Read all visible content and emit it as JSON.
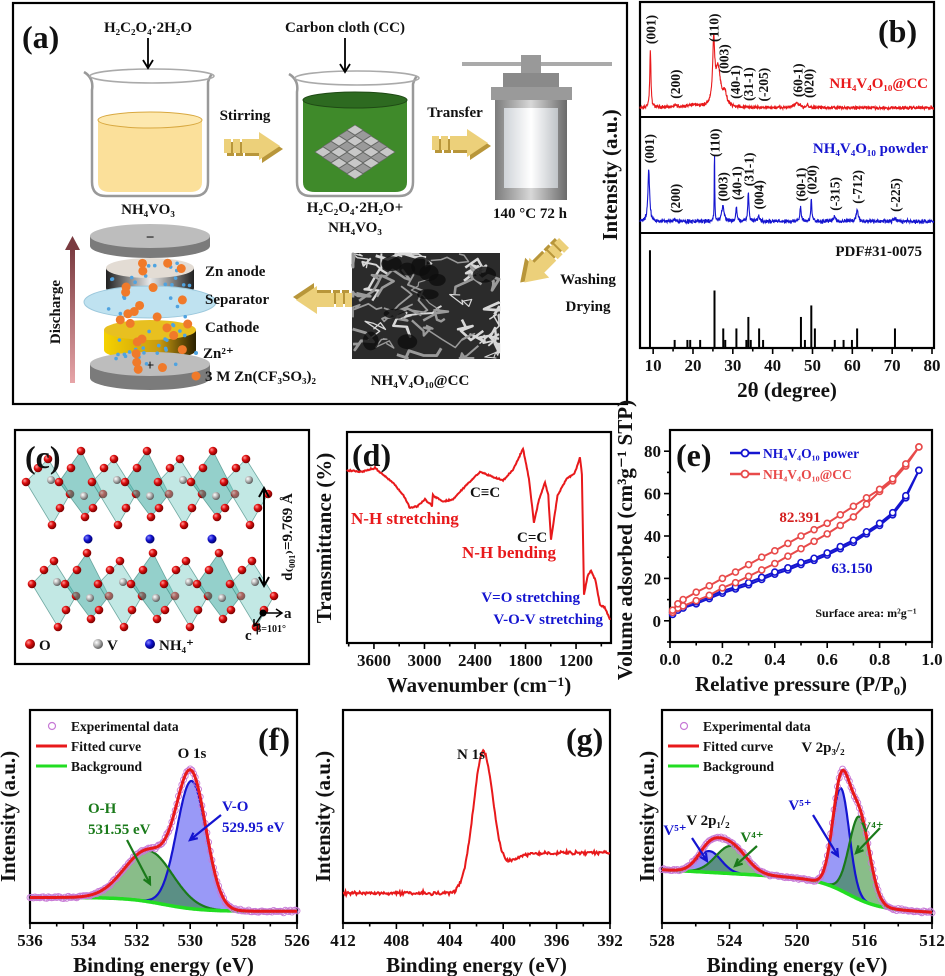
{
  "colors": {
    "red": "#e8191b",
    "blue": "#1515d0",
    "green_bg": "#22dd22",
    "dark_green": "#1a7a1a",
    "marker_pink": "#c77ad6",
    "arrow_gold": "#e6c45c"
  },
  "figure_panels": {
    "a": {
      "label": "(a)",
      "reagent_top_1": "H₂C₂O₄·2H₂O",
      "reagent_top_2": "Carbon cloth (CC)",
      "beaker1_label": "NH₄VO₃",
      "beaker2_label_line1": "H₂C₂O₄·2H₂O+",
      "beaker2_label_line2": "NH₄VO₃",
      "step1": "Stirring",
      "step2": "Transfer",
      "autoclave_label": "140 °C  72 h",
      "step3_line1": "Washing",
      "step3_line2": "Drying",
      "product_label": "NH₄V₄O₁₀@CC",
      "battery": {
        "discharge": "Discharge",
        "anode": "Zn anode",
        "separator": "Separator",
        "cathode": "Cathode",
        "ion_legend": "Zn²⁺",
        "electrolyte_legend": "3 M Zn(CF₃SO₃)₂",
        "minus": "−",
        "plus": "+"
      }
    },
    "c": {
      "label": "(c)",
      "d_spacing": "d₍₀₀₁₎=9.769 Å",
      "axis_a": "a",
      "axis_c": "c",
      "beta": "β=101°",
      "legend": [
        "O",
        "V",
        "NH₄⁺"
      ]
    }
  },
  "chart_data": [
    {
      "panel": "(b)",
      "type": "line",
      "title": "",
      "xlabel": "2θ (degree)",
      "ylabel": "Intensity (a.u.)",
      "xlim": [
        6.7,
        80.5
      ],
      "xticks": [
        "10",
        "20",
        "30",
        "40",
        "50",
        "60",
        "70",
        "80"
      ],
      "series": [
        {
          "name": "NH₄V₄O₁₀@CC",
          "color": "#e8191b",
          "baseline": 0.08,
          "noise": 0.022,
          "peaks": [
            [
              9.3,
              0.5,
              0.35
            ],
            [
              25.2,
              0.52,
              0.6
            ],
            [
              26.3,
              0.33,
              1.6
            ],
            [
              28.0,
              0.1,
              1.0
            ],
            [
              15.5,
              0.02,
              1.0
            ],
            [
              46.0,
              0.04,
              1.5
            ],
            [
              48.7,
              0.03,
              0.5
            ],
            [
              20.0,
              0.02,
              4.0
            ]
          ],
          "labels": [
            {
              "text": "(001)",
              "x": 9.3
            },
            {
              "text": "(200)",
              "x": 15.5
            },
            {
              "text": "(110)",
              "x": 25.2
            },
            {
              "text": "(003)",
              "x": 27.6
            },
            {
              "text": "(40-1)",
              "x": 30.6
            },
            {
              "text": "(31-1)",
              "x": 33.8
            },
            {
              "text": "(-205)",
              "x": 37.6
            },
            {
              "text": "(60-1)",
              "x": 46.3
            },
            {
              "text": "(020)",
              "x": 49.0
            }
          ]
        },
        {
          "name": "NH₄V₄O₁₀ powder",
          "color": "#1515d0",
          "baseline": 0.1,
          "noise": 0.025,
          "peaks": [
            [
              8.9,
              0.45,
              0.5
            ],
            [
              25.4,
              0.6,
              0.15
            ],
            [
              27.5,
              0.12,
              0.8
            ],
            [
              30.9,
              0.13,
              0.35
            ],
            [
              33.9,
              0.25,
              0.35
            ],
            [
              36.5,
              0.05,
              0.5
            ],
            [
              47.0,
              0.12,
              0.4
            ],
            [
              49.7,
              0.18,
              0.35
            ],
            [
              55.5,
              0.04,
              0.8
            ],
            [
              61.2,
              0.1,
              0.6
            ],
            [
              70.7,
              0.03,
              0.6
            ],
            [
              15.5,
              0.02,
              0.5
            ]
          ],
          "labels": [
            {
              "text": "(001)",
              "x": 8.9
            },
            {
              "text": "(200)",
              "x": 15.5
            },
            {
              "text": "(110)",
              "x": 25.4
            },
            {
              "text": "(003)",
              "x": 27.4
            },
            {
              "text": "(40-1)",
              "x": 30.9
            },
            {
              "text": "(31-1)",
              "x": 33.9
            },
            {
              "text": "(004)",
              "x": 36.4
            },
            {
              "text": "(60-1)",
              "x": 47.0
            },
            {
              "text": "(020)",
              "x": 49.7
            },
            {
              "text": "(-315)",
              "x": 55.5
            },
            {
              "text": "(-712)",
              "x": 61.2
            },
            {
              "text": "(-225)",
              "x": 70.7
            }
          ]
        }
      ],
      "reference": {
        "name": "PDF#31-0075",
        "sticks": [
          [
            9.2,
            0.85
          ],
          [
            15.4,
            0.07
          ],
          [
            18.6,
            0.07
          ],
          [
            19.3,
            0.07
          ],
          [
            21.8,
            0.07
          ],
          [
            25.4,
            0.5
          ],
          [
            27.6,
            0.17
          ],
          [
            28.1,
            0.07
          ],
          [
            30.9,
            0.17
          ],
          [
            33.4,
            0.07
          ],
          [
            33.9,
            0.27
          ],
          [
            34.5,
            0.07
          ],
          [
            36.6,
            0.17
          ],
          [
            37.6,
            0.07
          ],
          [
            47.1,
            0.27
          ],
          [
            48.1,
            0.07
          ],
          [
            49.7,
            0.37
          ],
          [
            50.6,
            0.17
          ],
          [
            55.6,
            0.07
          ],
          [
            57.8,
            0.07
          ],
          [
            59.9,
            0.07
          ],
          [
            61.2,
            0.17
          ],
          [
            70.7,
            0.17
          ]
        ]
      }
    },
    {
      "panel": "(d)",
      "type": "line",
      "xlabel": "Wavenumber (cm⁻¹)",
      "ylabel": "Transmittance (%)",
      "xlim": [
        3920,
        785
      ],
      "ylim": [
        0,
        100
      ],
      "xticks": [
        "3600",
        "3000",
        "2400",
        "1800",
        "1200"
      ],
      "color": "#e8191b",
      "points": [
        [
          3921,
          82
        ],
        [
          3750,
          81
        ],
        [
          3588,
          83
        ],
        [
          3374,
          76
        ],
        [
          3250,
          70
        ],
        [
          3172,
          64
        ],
        [
          3080,
          65
        ],
        [
          2994,
          68
        ],
        [
          2911,
          65
        ],
        [
          2900,
          70
        ],
        [
          2780,
          67
        ],
        [
          2662,
          68
        ],
        [
          2500,
          75
        ],
        [
          2341,
          81
        ],
        [
          2200,
          79
        ],
        [
          2068,
          77
        ],
        [
          1950,
          82
        ],
        [
          1830,
          92
        ],
        [
          1760,
          78
        ],
        [
          1700,
          57
        ],
        [
          1640,
          68
        ],
        [
          1569,
          76
        ],
        [
          1530,
          70
        ],
        [
          1498,
          49
        ],
        [
          1420,
          70
        ],
        [
          1308,
          78
        ],
        [
          1220,
          80
        ],
        [
          1154,
          88
        ],
        [
          1130,
          80
        ],
        [
          1106,
          23
        ],
        [
          1060,
          32
        ],
        [
          1023,
          34
        ],
        [
          970,
          30
        ],
        [
          916,
          18
        ],
        [
          860,
          17
        ],
        [
          797,
          11
        ]
      ],
      "annotations": [
        {
          "text": "N-H stretching",
          "color": "#e8191b"
        },
        {
          "text": "C≡C",
          "color": "#111111"
        },
        {
          "text": "C=C",
          "color": "#111111"
        },
        {
          "text": "N-H bending",
          "color": "#e8191b"
        },
        {
          "text": "V=O stretching",
          "color": "#1515d0"
        },
        {
          "text": "V-O-V stretching",
          "color": "#1515d0"
        }
      ]
    },
    {
      "panel": "(e)",
      "type": "line",
      "xlabel": "Relative pressure (P/P₀)",
      "ylabel": "Volume adsorbed (cm³g⁻¹ STP)",
      "xlim": [
        0,
        1
      ],
      "ylim": [
        -10,
        90
      ],
      "xticks": [
        "0.0",
        "0.2",
        "0.4",
        "0.6",
        "0.8",
        "1.0"
      ],
      "yticks": [
        "0",
        "20",
        "40",
        "60",
        "80"
      ],
      "x": [
        0.01,
        0.03,
        0.05,
        0.1,
        0.15,
        0.2,
        0.25,
        0.3,
        0.35,
        0.4,
        0.45,
        0.5,
        0.55,
        0.6,
        0.65,
        0.7,
        0.75,
        0.8,
        0.85,
        0.9,
        0.95
      ],
      "series": [
        {
          "name": "NH₄V₄O₁₀ power",
          "color": "#1515d0",
          "adsorption": [
            3,
            5,
            6,
            8,
            10.5,
            13,
            15,
            17,
            19.5,
            22,
            24,
            26.5,
            28.5,
            31,
            34,
            37,
            41,
            45,
            50,
            58,
            71
          ],
          "desorption": [
            4,
            6,
            7,
            9,
            11.5,
            14,
            16,
            18,
            20.5,
            23,
            25,
            27.5,
            29.5,
            32,
            35,
            38,
            42,
            46,
            51,
            59,
            71
          ],
          "surface_area": "63.150"
        },
        {
          "name": "NH₄V₄O₁₀@CC",
          "color": "#e84a4a",
          "adsorption": [
            4,
            6,
            7,
            9.5,
            12,
            15.5,
            18,
            21,
            24,
            27,
            30.5,
            34,
            37.5,
            41,
            45,
            49,
            55,
            61,
            66,
            73,
            82
          ],
          "desorption": [
            5,
            8,
            10,
            13.5,
            16.5,
            20,
            23,
            26.5,
            30,
            33,
            36.5,
            40,
            43,
            46,
            50,
            54,
            58,
            62,
            67,
            74,
            82
          ],
          "surface_area": "82.391"
        }
      ],
      "note": "Surface area: m²g⁻¹",
      "legend_position": "top-right"
    },
    {
      "panel": "(f)",
      "type": "line",
      "xlabel": "Binding energy (eV)",
      "ylabel": "Intensity (a.u.)",
      "xlim": [
        536,
        526
      ],
      "ylim": [
        0,
        1
      ],
      "xticks": [
        "536",
        "534",
        "532",
        "530",
        "528",
        "526"
      ],
      "legend": [
        "Experimental  data",
        "Fitted  curve",
        "Background"
      ],
      "peak_label": "O 1s",
      "background": {
        "base": 0.055,
        "step": 0.065,
        "center": 531.0,
        "width": 0.7,
        "slope": 0
      },
      "components": [
        {
          "name": "V-O",
          "energy": "529.95 eV",
          "center": 529.95,
          "amplitude": 0.6,
          "sigma": 0.55,
          "color": "blue"
        },
        {
          "name": "O-H",
          "energy": "531.55 eV",
          "center": 531.55,
          "amplitude": 0.24,
          "sigma": 0.9,
          "color": "green"
        }
      ]
    },
    {
      "panel": "(g)",
      "type": "line",
      "xlabel": "Binding energy (eV)",
      "ylabel": "Intensity (a.u.)",
      "xlim": [
        412,
        392
      ],
      "ylim": [
        0,
        1
      ],
      "xticks": [
        "412",
        "408",
        "404",
        "400",
        "396",
        "392"
      ],
      "peak_label": "N 1s",
      "background": {
        "base": 0.33,
        "step": -0.19,
        "center": 400.0,
        "width": 0.6,
        "slope": 0
      },
      "components": [
        {
          "name": "N 1s",
          "center": 401.5,
          "amplitude": 0.65,
          "sigma": 0.75,
          "color": "red"
        }
      ]
    },
    {
      "panel": "(h)",
      "type": "line",
      "xlabel": "Binding energy (eV)",
      "ylabel": "Intensity (a.u.)",
      "xlim": [
        528,
        512
      ],
      "ylim": [
        0,
        1
      ],
      "xticks": [
        "528",
        "524",
        "520",
        "516",
        "512"
      ],
      "legend": [
        "Experimental  data",
        "Fitted  curve",
        "Background"
      ],
      "peak_labels": [
        "V 2p₃/₂",
        "V 2p₁/₂"
      ],
      "background": {
        "base": 0.05,
        "step": 0.13,
        "center": 517.0,
        "width": 0.9,
        "slope": 0.07
      },
      "components": [
        {
          "name": "V⁵⁺",
          "center": 517.4,
          "amplitude": 0.48,
          "sigma": 0.5,
          "color": "blue"
        },
        {
          "name": "V⁴⁺",
          "center": 516.3,
          "amplitude": 0.39,
          "sigma": 0.6,
          "color": "green"
        },
        {
          "name": "V⁵⁺",
          "center": 525.2,
          "amplitude": 0.1,
          "sigma": 0.7,
          "color": "blue"
        },
        {
          "name": "V⁴⁺",
          "center": 523.9,
          "amplitude": 0.13,
          "sigma": 0.9,
          "color": "green"
        }
      ]
    }
  ]
}
